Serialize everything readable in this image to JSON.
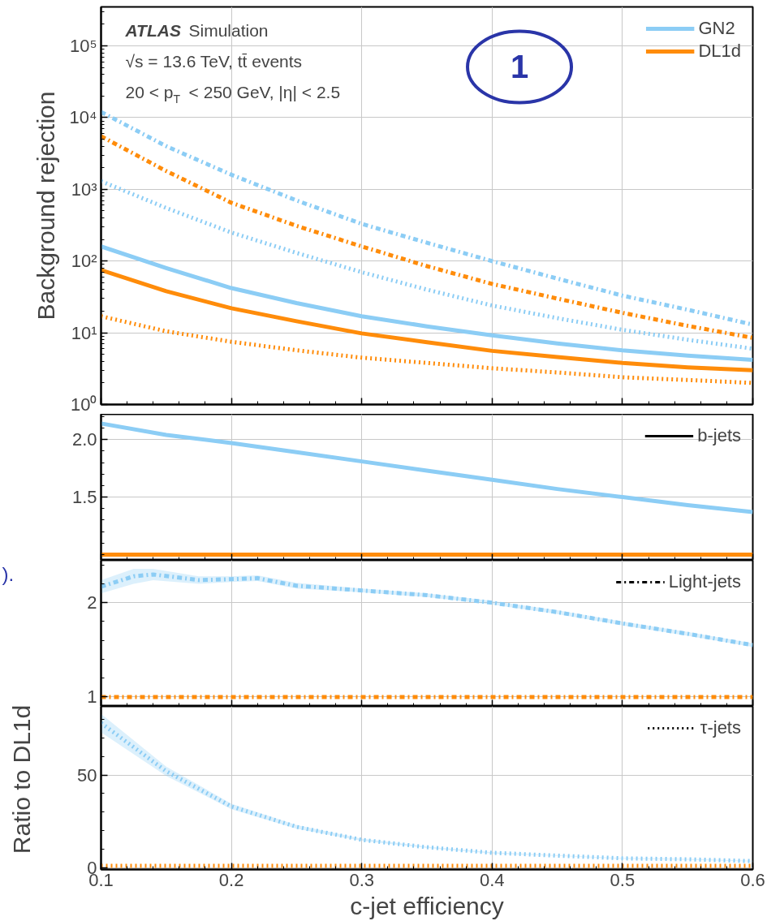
{
  "chart_data": [
    {
      "type": "line",
      "ylabel": "Background rejection",
      "log": true,
      "x": [
        0.1,
        0.15,
        0.2,
        0.25,
        0.3,
        0.35,
        0.4,
        0.45,
        0.5,
        0.55,
        0.6
      ],
      "xlim": [
        0.1,
        0.6
      ],
      "ylim": [
        1,
        350000
      ],
      "xticks": [
        0.1,
        0.2,
        0.3,
        0.4,
        0.5,
        0.6
      ],
      "yticks": [
        {
          "value": 1,
          "label": "10⁰"
        },
        {
          "value": 10,
          "label": "10¹"
        },
        {
          "value": 100,
          "label": "10²"
        },
        {
          "value": 1000,
          "label": "10³"
        },
        {
          "value": 10000,
          "label": "10⁴"
        },
        {
          "value": 100000,
          "label": "10⁵"
        }
      ],
      "tick_labels": "y",
      "grid": true,
      "legend": "top right",
      "annotations": [
        "ATLAS Simulation",
        "√s = 13.6 TeV, tt̄ events",
        "20 < p$_{T}$ < 250 GeV, |η| < 2.5",
        "1"
      ],
      "series": [
        {
          "name": "GN2",
          "color": "#8ccdf5",
          "line_style": "solid",
          "values": [
            160,
            80,
            42,
            26,
            17,
            12.3,
            9.2,
            7.1,
            5.7,
            4.8,
            4.2
          ]
        },
        {
          "name": "DL1d",
          "color": "#ff8c0a",
          "line_style": "solid",
          "values": [
            75,
            38,
            22,
            14.5,
            9.8,
            7.4,
            5.6,
            4.6,
            3.8,
            3.3,
            3.0
          ]
        },
        {
          "color": "#8ccdf5",
          "line_style": "dashdot",
          "values": [
            12000,
            4000,
            1600,
            700,
            330,
            180,
            100,
            57,
            33,
            21,
            13
          ]
        },
        {
          "color": "#ff8c0a",
          "line_style": "dashdot",
          "values": [
            5500,
            1800,
            650,
            310,
            160,
            85,
            48,
            30,
            19,
            12.5,
            8.5
          ]
        },
        {
          "color": "#8ccdf5",
          "line_style": "dotted",
          "values": [
            1300,
            550,
            250,
            130,
            70,
            40,
            24,
            16,
            11,
            8,
            6
          ]
        },
        {
          "color": "#ff8c0a",
          "line_style": "dotted",
          "values": [
            17,
            10.5,
            7.5,
            5.7,
            4.5,
            3.8,
            3.2,
            2.8,
            2.4,
            2.2,
            2.0
          ]
        }
      ]
    },
    {
      "type": "line",
      "legend_title": "b-jets",
      "line_style": "solid",
      "legend": "right",
      "x": [
        0.1,
        0.15,
        0.2,
        0.25,
        0.3,
        0.35,
        0.4,
        0.45,
        0.5,
        0.55,
        0.6
      ],
      "xlim": [
        0.1,
        0.6
      ],
      "ylim": [
        0.95,
        2.22
      ],
      "xticks": [
        0.1,
        0.2,
        0.3,
        0.4,
        0.5,
        0.6
      ],
      "yticks": [
        {
          "value": 1.5,
          "label": "1.5"
        },
        {
          "value": 2,
          "label": "2.0"
        }
      ],
      "tick_labels": "y",
      "grid": true,
      "series": [
        {
          "color": "#8ccdf5",
          "values": [
            2.14,
            2.04,
            1.97,
            1.89,
            1.81,
            1.73,
            1.65,
            1.57,
            1.5,
            1.43,
            1.37
          ]
        },
        {
          "color": "#ff8c0a",
          "values": [
            1,
            1,
            1,
            1,
            1,
            1,
            1,
            1,
            1,
            1,
            1
          ]
        }
      ]
    },
    {
      "type": "line",
      "legend_title": "Light-jets",
      "line_style": "dashdot",
      "legend": "right",
      "ylabel": "Ratio to DL1d",
      "x": [
        0.1,
        0.125,
        0.14,
        0.175,
        0.2,
        0.22,
        0.25,
        0.3,
        0.35,
        0.4,
        0.45,
        0.5,
        0.55,
        0.6
      ],
      "xlim": [
        0.1,
        0.6
      ],
      "ylim": [
        0.9,
        2.45
      ],
      "xticks": [
        0.1,
        0.2,
        0.3,
        0.4,
        0.5,
        0.6
      ],
      "yticks": [
        1,
        2
      ],
      "tick_labels": "y",
      "grid": true,
      "annotations": [
        ")."
      ],
      "series": [
        {
          "color": "#8ccdf5",
          "values": [
            2.17,
            2.28,
            2.3,
            2.24,
            2.25,
            2.26,
            2.18,
            2.13,
            2.08,
            2.0,
            1.9,
            1.78,
            1.67,
            1.55
          ],
          "lower": [
            2.1,
            2.2,
            2.24,
            2.2,
            2.22,
            2.23,
            2.15,
            2.11,
            2.06,
            1.98,
            1.88,
            1.76,
            1.65,
            1.53
          ],
          "upper": [
            2.24,
            2.36,
            2.36,
            2.28,
            2.28,
            2.29,
            2.21,
            2.15,
            2.1,
            2.02,
            1.92,
            1.8,
            1.69,
            1.57
          ]
        },
        {
          "color": "#ff8c0a",
          "values": [
            1,
            1,
            1,
            1,
            1,
            1,
            1,
            1,
            1,
            1,
            1,
            1,
            1,
            1
          ]
        }
      ]
    },
    {
      "type": "line",
      "legend_title": "τ-jets",
      "line_style": "dotted",
      "legend": "right",
      "xlabel": "c-jet efficiency",
      "x": [
        0.1,
        0.15,
        0.2,
        0.25,
        0.3,
        0.35,
        0.4,
        0.45,
        0.5,
        0.55,
        0.6
      ],
      "xlim": [
        0.1,
        0.6
      ],
      "ylim": [
        -1,
        87
      ],
      "xticks": [
        0.1,
        0.2,
        0.3,
        0.4,
        0.5,
        0.6
      ],
      "yticks": [
        0,
        50
      ],
      "grid": true,
      "series": [
        {
          "color": "#8ccdf5",
          "values": [
            78,
            52,
            33,
            22,
            15,
            11,
            8,
            6.5,
            5,
            4.5,
            3.5
          ],
          "lower": [
            73,
            49.5,
            31.5,
            21,
            14.4,
            10.6,
            7.7,
            6.3,
            4.8,
            4.3,
            3.3
          ],
          "upper": [
            83,
            54.5,
            34.5,
            23,
            15.6,
            11.4,
            8.3,
            6.7,
            5.2,
            4.7,
            3.7
          ]
        },
        {
          "color": "#ff8c0a",
          "values": [
            1,
            1,
            1,
            1,
            1,
            1,
            1,
            1,
            1,
            1,
            1
          ]
        }
      ]
    }
  ]
}
